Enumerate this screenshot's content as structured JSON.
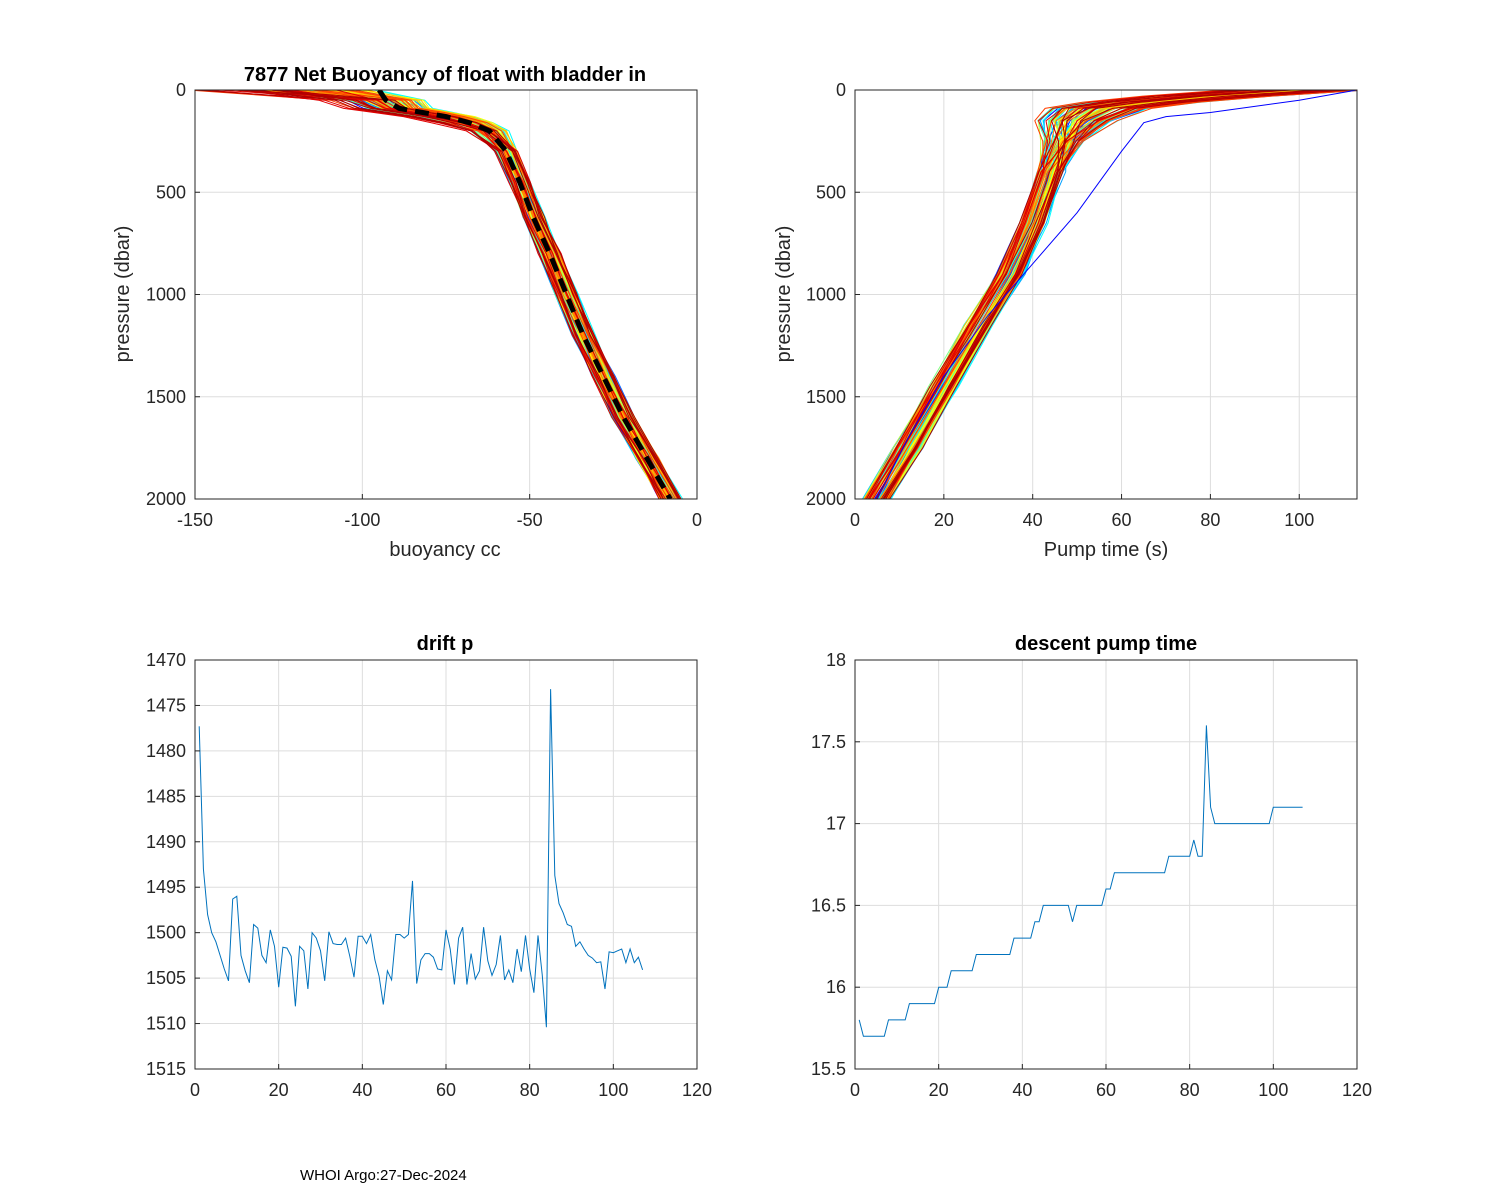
{
  "footer": "WHOI Argo:27-Dec-2024",
  "colors": {
    "line": "#0072BD",
    "mean": "#000000",
    "grid": "#dddddd",
    "axis": "#262626",
    "profiles": [
      "#0000ff",
      "#0030ff",
      "#0060ff",
      "#00a0ff",
      "#00c8ff",
      "#00ffff",
      "#40ffc0",
      "#80ff80",
      "#c0ff40",
      "#ffff00",
      "#ffc000",
      "#ff8000",
      "#ff4000",
      "#e00000",
      "#b00000"
    ]
  },
  "chart_data": [
    {
      "id": "buoyancy",
      "type": "line",
      "title": "7877 Net Buoyancy of float with bladder in",
      "xlabel": "buoyancy cc",
      "ylabel": "pressure (dbar)",
      "xlim": [
        -150,
        0
      ],
      "ylim": [
        0,
        2000
      ],
      "y_reversed": true,
      "xticks": [
        -150,
        -100,
        -50,
        0
      ],
      "yticks": [
        0,
        500,
        1000,
        1500,
        2000
      ],
      "profile_count": 107,
      "mean_profile": {
        "x": [
          -95,
          -93,
          -89,
          -82,
          -75,
          -68,
          -62,
          -57,
          -53,
          -49,
          -44,
          -39,
          -34,
          -28,
          -22,
          -15,
          -8
        ],
        "y": [
          0,
          50,
          90,
          110,
          130,
          160,
          200,
          300,
          450,
          620,
          800,
          1000,
          1200,
          1400,
          1600,
          1800,
          2000
        ]
      }
    },
    {
      "id": "pump",
      "type": "line",
      "title": "",
      "xlabel": "Pump time (s)",
      "ylabel": "pressure (dbar)",
      "xlim": [
        0,
        113
      ],
      "ylim": [
        0,
        2000
      ],
      "y_reversed": true,
      "xticks": [
        0,
        20,
        40,
        60,
        80,
        100
      ],
      "yticks": [
        0,
        500,
        1000,
        1500,
        2000
      ],
      "profile_count": 107,
      "typical_profile": {
        "x": [
          100,
          80,
          65,
          55,
          50,
          47,
          44,
          40,
          35,
          28,
          20,
          12,
          5
        ],
        "y": [
          0,
          30,
          60,
          90,
          150,
          250,
          400,
          650,
          900,
          1150,
          1450,
          1750,
          2000
        ]
      }
    },
    {
      "id": "drift",
      "type": "line",
      "title": "drift p",
      "xlabel": "",
      "ylabel": "",
      "xlim": [
        0,
        120
      ],
      "ylim": [
        1470,
        1515
      ],
      "y_reversed": true,
      "xticks": [
        0,
        20,
        40,
        60,
        80,
        100,
        120
      ],
      "yticks": [
        1470,
        1475,
        1480,
        1485,
        1490,
        1495,
        1500,
        1505,
        1510,
        1515
      ],
      "x": [
        1,
        2,
        3,
        4,
        5,
        6,
        7,
        8,
        9,
        10,
        11,
        12,
        13,
        14,
        15,
        16,
        17,
        18,
        19,
        20,
        21,
        22,
        23,
        24,
        25,
        26,
        27,
        28,
        29,
        30,
        31,
        32,
        33,
        34,
        35,
        36,
        37,
        38,
        39,
        40,
        41,
        42,
        43,
        44,
        45,
        46,
        47,
        48,
        49,
        50,
        51,
        52,
        53,
        54,
        55,
        56,
        57,
        58,
        59,
        60,
        61,
        62,
        63,
        64,
        65,
        66,
        67,
        68,
        69,
        70,
        71,
        72,
        73,
        74,
        75,
        76,
        77,
        78,
        79,
        80,
        81,
        82,
        83,
        84,
        85,
        86,
        87,
        88,
        89,
        90,
        91,
        92,
        93,
        94,
        95,
        96,
        97,
        98,
        99,
        100,
        101,
        102,
        103,
        104,
        105,
        106,
        107
      ],
      "values": [
        1477.3,
        1493,
        1498,
        1500,
        1501,
        1502.5,
        1504,
        1505.3,
        1496.3,
        1496,
        1502.5,
        1504.2,
        1505.5,
        1499.1,
        1499.5,
        1502.5,
        1503.3,
        1499.7,
        1501.5,
        1506,
        1501.6,
        1501.7,
        1502.6,
        1508.1,
        1501.5,
        1502,
        1506.2,
        1500,
        1500.6,
        1502,
        1505.3,
        1499.9,
        1501.2,
        1501.3,
        1501.3,
        1500.6,
        1502.6,
        1504.9,
        1500.4,
        1500.4,
        1501.2,
        1500.2,
        1503,
        1504.8,
        1507.9,
        1504.2,
        1505.2,
        1500.2,
        1500.2,
        1500.6,
        1500.2,
        1494.3,
        1505.6,
        1503,
        1502.3,
        1502.3,
        1502.7,
        1504,
        1504.1,
        1499.7,
        1501.8,
        1505.7,
        1500.6,
        1499.4,
        1505.7,
        1502.3,
        1505.1,
        1504.2,
        1499.4,
        1503.1,
        1504.7,
        1503.5,
        1500.3,
        1505.2,
        1504.1,
        1505.5,
        1501.8,
        1504.3,
        1500.3,
        1504,
        1506.6,
        1500.3,
        1504.6,
        1510.4,
        1473.2,
        1493.7,
        1496.8,
        1497.8,
        1499.1,
        1499.3,
        1501.5,
        1501,
        1501.8,
        1502.5,
        1502.8,
        1503.3,
        1503.2,
        1506.2,
        1502.1,
        1502.2,
        1502,
        1501.8,
        1503.3,
        1501.8,
        1503.3,
        1502.7,
        1504.1
      ]
    },
    {
      "id": "descent",
      "type": "line",
      "title": "descent pump time",
      "xlabel": "",
      "ylabel": "",
      "xlim": [
        0,
        120
      ],
      "ylim": [
        15.5,
        18
      ],
      "y_reversed": false,
      "xticks": [
        0,
        20,
        40,
        60,
        80,
        100,
        120
      ],
      "yticks": [
        15.5,
        16,
        16.5,
        17,
        17.5,
        18
      ],
      "x": [
        1,
        2,
        3,
        4,
        5,
        6,
        7,
        8,
        9,
        10,
        11,
        12,
        13,
        14,
        15,
        16,
        17,
        18,
        19,
        20,
        21,
        22,
        23,
        24,
        25,
        26,
        27,
        28,
        29,
        30,
        31,
        32,
        33,
        34,
        35,
        36,
        37,
        38,
        39,
        40,
        41,
        42,
        43,
        44,
        45,
        46,
        47,
        48,
        49,
        50,
        51,
        52,
        53,
        54,
        55,
        56,
        57,
        58,
        59,
        60,
        61,
        62,
        63,
        64,
        65,
        66,
        67,
        68,
        69,
        70,
        71,
        72,
        73,
        74,
        75,
        76,
        77,
        78,
        79,
        80,
        81,
        82,
        83,
        84,
        85,
        86,
        87,
        88,
        89,
        90,
        91,
        92,
        93,
        94,
        95,
        96,
        97,
        98,
        99,
        100,
        101,
        102,
        103,
        104,
        105,
        106,
        107
      ],
      "values": [
        15.8,
        15.7,
        15.7,
        15.7,
        15.7,
        15.7,
        15.7,
        15.8,
        15.8,
        15.8,
        15.8,
        15.8,
        15.9,
        15.9,
        15.9,
        15.9,
        15.9,
        15.9,
        15.9,
        16,
        16,
        16,
        16.1,
        16.1,
        16.1,
        16.1,
        16.1,
        16.1,
        16.2,
        16.2,
        16.2,
        16.2,
        16.2,
        16.2,
        16.2,
        16.2,
        16.2,
        16.3,
        16.3,
        16.3,
        16.3,
        16.3,
        16.4,
        16.4,
        16.5,
        16.5,
        16.5,
        16.5,
        16.5,
        16.5,
        16.5,
        16.4,
        16.5,
        16.5,
        16.5,
        16.5,
        16.5,
        16.5,
        16.5,
        16.6,
        16.6,
        16.7,
        16.7,
        16.7,
        16.7,
        16.7,
        16.7,
        16.7,
        16.7,
        16.7,
        16.7,
        16.7,
        16.7,
        16.7,
        16.8,
        16.8,
        16.8,
        16.8,
        16.8,
        16.8,
        16.9,
        16.8,
        16.8,
        17.6,
        17.1,
        17,
        17,
        17,
        17,
        17,
        17,
        17,
        17,
        17,
        17,
        17,
        17,
        17,
        17,
        17.1,
        17.1,
        17.1,
        17.1,
        17.1,
        17.1,
        17.1,
        17.1
      ]
    }
  ]
}
